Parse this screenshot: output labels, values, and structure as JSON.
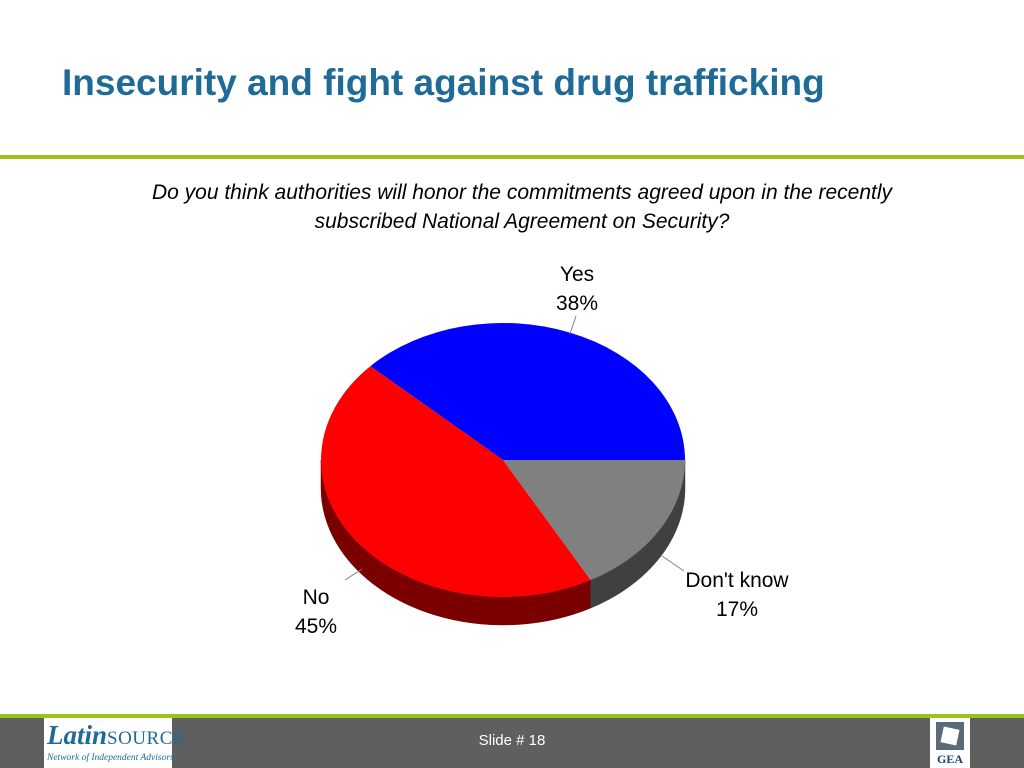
{
  "slide": {
    "title": "Insecurity and fight against drug trafficking",
    "slide_number": "Slide # 18"
  },
  "chart_data": {
    "type": "pie",
    "title": "Do you think authorities will honor the commitments agreed upon in the recently subscribed National Agreement on Security?",
    "three_d": true,
    "slices": [
      {
        "label": "Yes",
        "value": 38,
        "value_label": "38%",
        "color": "#0000ff",
        "side_color": "#00007a"
      },
      {
        "label": "No",
        "value": 45,
        "value_label": "45%",
        "color": "#ff0000",
        "side_color": "#7a0000"
      },
      {
        "label": "Don't know",
        "value": 17,
        "value_label": "17%",
        "color": "#808080",
        "side_color": "#404040"
      }
    ]
  },
  "footer": {
    "logo_left": {
      "main_big": "Latin",
      "main_small": "SOURCE",
      "sub": "Network of Independent Advisors"
    },
    "logo_right": {
      "text": "GEA"
    }
  }
}
